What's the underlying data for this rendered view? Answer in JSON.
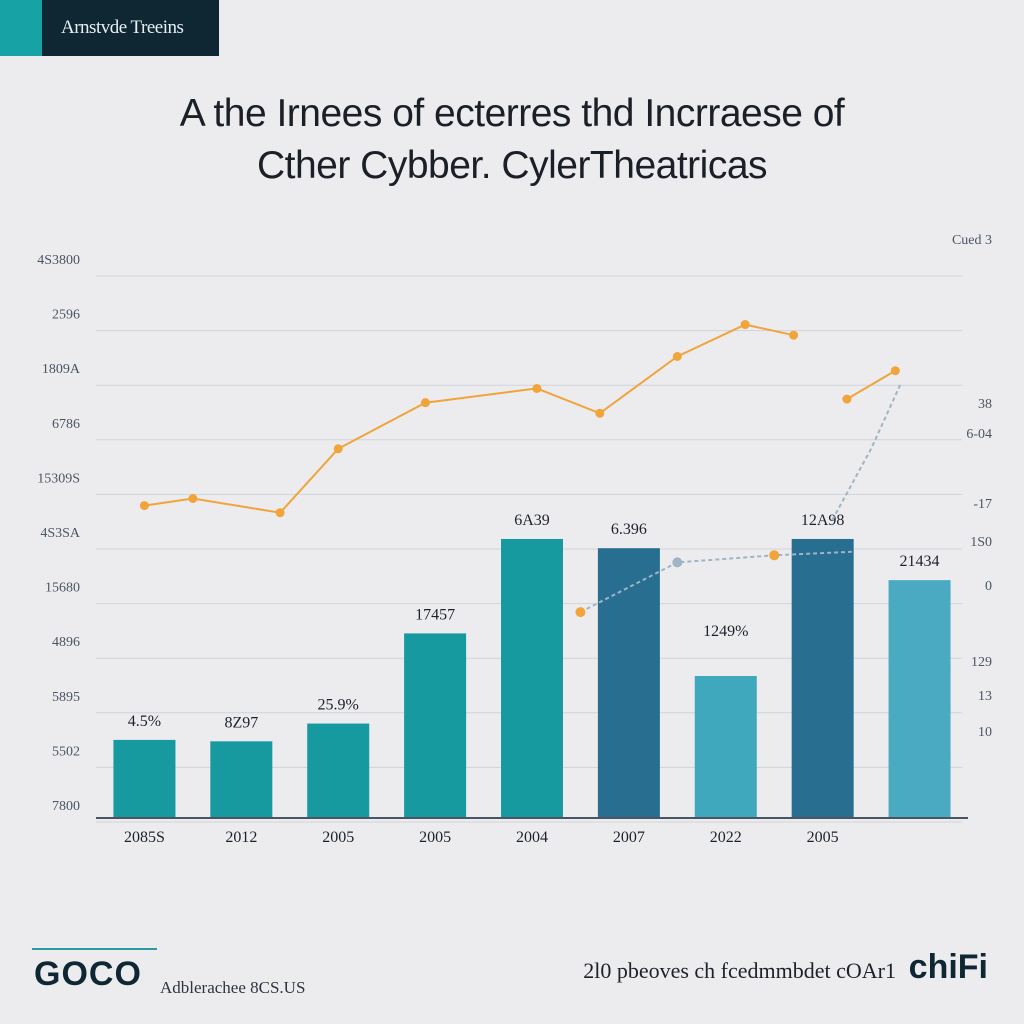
{
  "header": {
    "tag_label": "Arnstvde Treeins"
  },
  "title": {
    "line1": "A the Irnees of ecterres thd Incrraese of",
    "line2": "Cther Cybber. CylerTheatricas"
  },
  "colors": {
    "teal": "#1799a0",
    "navy": "#276e91",
    "light": "#3fa8bd",
    "mid": "#49aac1",
    "orange": "#f0a43a",
    "grid": "#cfd4da",
    "axis": "#4a5563",
    "dashed": "#9fb4c4"
  },
  "chart_data": {
    "type": "bar",
    "title": "A the Irnees of ecterres thd Incrraese of Cther Cybber. CylerTheatricas",
    "categories": [
      "2085S",
      "2012",
      "2005",
      "2005",
      "2004",
      "2007",
      "2022",
      "2005",
      ""
    ],
    "series": [
      {
        "name": "bars",
        "values": [
          1.1,
          1.08,
          1.33,
          2.6,
          3.93,
          3.8,
          2.0,
          3.93,
          3.35
        ],
        "colors": [
          "teal",
          "teal",
          "teal",
          "teal",
          "teal",
          "navy",
          "light",
          "navy",
          "mid"
        ]
      }
    ],
    "bar_labels": [
      "4.5%",
      "8Z97",
      "25.9%",
      "17457",
      "6A39",
      "6.396",
      "1249%",
      "12A98",
      "21434"
    ],
    "lines": [
      {
        "name": "orange-trend",
        "style": "solid",
        "color": "orange",
        "points": [
          [
            0.5,
            4.4
          ],
          [
            1,
            4.5
          ],
          [
            1.9,
            4.3
          ],
          [
            2.5,
            5.2
          ],
          [
            3.4,
            5.85
          ],
          [
            4.55,
            6.05
          ],
          [
            5.2,
            5.7
          ],
          [
            6.0,
            6.5
          ],
          [
            6.7,
            6.95
          ],
          [
            7.2,
            6.8
          ]
        ]
      },
      {
        "name": "orange-trend-2",
        "style": "solid",
        "color": "orange",
        "points": [
          [
            7.75,
            5.9
          ],
          [
            8.25,
            6.3
          ]
        ]
      },
      {
        "name": "dashed-trend",
        "style": "dashed",
        "color": "dashed",
        "points": [
          [
            5.0,
            2.9
          ],
          [
            6.0,
            3.6
          ],
          [
            7.0,
            3.7
          ],
          [
            7.8,
            3.75
          ]
        ]
      },
      {
        "name": "dashed-trend-2",
        "style": "dashed",
        "color": "dashed",
        "points": [
          [
            7.6,
            4.2
          ],
          [
            8.0,
            5.2
          ],
          [
            8.3,
            6.1
          ]
        ]
      }
    ],
    "markers": [
      {
        "color": "orange",
        "x": 5.0,
        "y": 2.9
      },
      {
        "color": "dashed",
        "x": 6.0,
        "y": 3.6
      },
      {
        "color": "orange",
        "x": 7.0,
        "y": 3.7
      }
    ],
    "y_left_ticks": [
      "4S3800",
      "2596",
      "1809A",
      "6786",
      "15309S",
      "4S3SA",
      "15680",
      "4896",
      "5895",
      "5502",
      "7800"
    ],
    "y_right_ticks": [
      "Cued 3",
      "38",
      "6-04",
      "-17",
      "1S0",
      "0",
      "129",
      "13",
      "10"
    ],
    "ylim": [
      0,
      8
    ],
    "xlabel": "",
    "ylabel": ""
  },
  "footer": {
    "logo": "GOCO",
    "sub_brand": "Adblerachee 8CS.US",
    "source_note": "2l0 pbeoves ch fcedmmbdet cOAr1",
    "brand_mark": "chiFi"
  }
}
